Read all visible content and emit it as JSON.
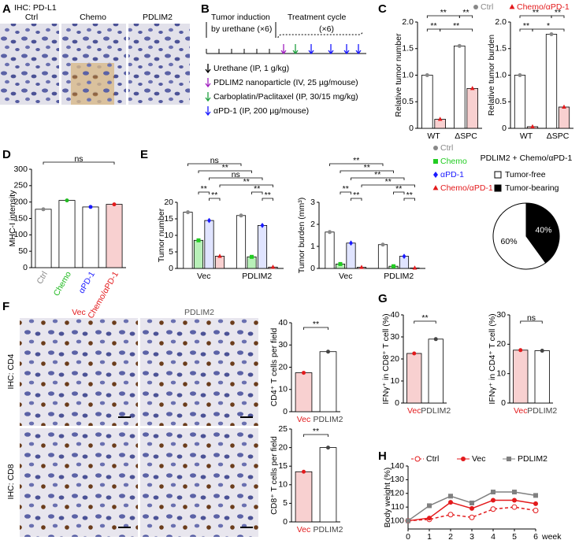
{
  "panel_labels": [
    "A",
    "B",
    "C",
    "D",
    "E",
    "F",
    "G",
    "H"
  ],
  "panel_a": {
    "title": "IHC: PD-L1",
    "images": [
      "Ctrl",
      "Chemo",
      "PDLIM2"
    ]
  },
  "panel_b": {
    "phases": [
      [
        "Tumor induction",
        "by urethane (×6)"
      ],
      [
        "Treatment cycle",
        "(×6)"
      ]
    ],
    "legend": [
      {
        "text": "Urethane (IP, 1 g/kg)",
        "color": "#000000"
      },
      {
        "text": "PDLIM2 nanoparticle (IV, 25 µg/mouse)",
        "color": "#a020c0"
      },
      {
        "text": "Carboplatin/Paclitaxel (IP, 30/15 mg/kg)",
        "color": "#20a040"
      },
      {
        "text": "αPD-1 (IP, 200 µg/mouse)",
        "color": "#1a1aff"
      }
    ]
  },
  "panel_f": {
    "columns": [
      "Vec",
      "PDLIM2"
    ],
    "rows": [
      "IHC: CD4",
      "IHC: CD8"
    ]
  },
  "chart_data": [
    {
      "type": "bar",
      "y_label": "Relative tumor number",
      "categories": [
        "WT",
        "ΔSPC"
      ],
      "series": [
        {
          "name": "Ctrl",
          "color": "#888888",
          "fill": "#ffffff",
          "marker": "circle",
          "values": [
            1.0,
            1.55
          ]
        },
        {
          "name": "Chemo/αPD-1",
          "color": "#e31a1c",
          "fill": "#f8d0d0",
          "marker": "triangle",
          "values": [
            0.17,
            0.75
          ]
        }
      ],
      "ylim": [
        0,
        2
      ],
      "yticks": [
        0,
        0.5,
        {
          "value": 1,
          "label": "1.0"
        },
        1.5,
        {
          "value": 2,
          "label": "2.0"
        }
      ],
      "annotations": [
        "**",
        "**",
        "**",
        "**"
      ]
    },
    {
      "type": "bar",
      "y_label": "Relative tumor burden",
      "categories": [
        "WT",
        "ΔSPC"
      ],
      "series": [
        {
          "color": "#888888",
          "fill": "#ffffff",
          "marker": "circle",
          "values": [
            1.0,
            1.77
          ]
        },
        {
          "color": "#e31a1c",
          "fill": "#f8d0d0",
          "marker": "triangle",
          "values": [
            0.03,
            0.4
          ]
        }
      ],
      "ylim": [
        0,
        2
      ],
      "yticks": [
        0,
        0.5,
        {
          "value": 1,
          "label": "1.0"
        },
        1.5,
        {
          "value": 2,
          "label": "2.0"
        }
      ],
      "annotations": [
        "**",
        "**",
        "**",
        "*"
      ]
    },
    {
      "type": "bar",
      "y_label": "MHC-I intensity",
      "categories": [
        "Ctrl",
        "Chemo",
        "αPD-1",
        "Chemo/αPD-1"
      ],
      "values": [
        178,
        205,
        185,
        193
      ],
      "colors": [
        "#888888",
        "#22bb22",
        "#1a1aff",
        "#e31a1c"
      ],
      "fills": [
        "#ffffff",
        "#ffffff",
        "#ffffff",
        "#f8d0d0"
      ],
      "ylim": [
        0,
        300
      ],
      "yticks": [
        0,
        50,
        100,
        150,
        200,
        250,
        300
      ],
      "annotations": [
        "ns"
      ]
    },
    {
      "type": "bar",
      "y_label": "Tumor number",
      "categories": [
        "Vec",
        "PDLIM2"
      ],
      "series": [
        {
          "color": "#888888",
          "fill": "#ffffff",
          "marker": "circle",
          "values": [
            17,
            16
          ]
        },
        {
          "color": "#22cc22",
          "fill": "#b8f0b8",
          "marker": "square",
          "values": [
            8.5,
            3.5
          ]
        },
        {
          "color": "#1a1aff",
          "fill": "#e0e4ff",
          "marker": "diamond",
          "values": [
            14.5,
            13
          ]
        },
        {
          "color": "#e31a1c",
          "fill": "#f8d0d0",
          "marker": "triangle",
          "values": [
            3.7,
            0.4
          ]
        }
      ],
      "ylim": [
        0,
        20
      ],
      "yticks": [
        0,
        5,
        10,
        15,
        20
      ],
      "annotations": [
        "ns",
        "**",
        "ns",
        "**",
        "**",
        "**",
        "**",
        "**"
      ]
    },
    {
      "type": "bar",
      "y_label": "Tumor burden (mm³)",
      "categories": [
        "Vec",
        "PDLIM2"
      ],
      "series": [
        {
          "name": "Ctrl",
          "color": "#888888",
          "fill": "#ffffff",
          "marker": "circle",
          "values": [
            1.65,
            1.08
          ]
        },
        {
          "name": "Chemo",
          "color": "#22cc22",
          "fill": "#b8f0b8",
          "marker": "square",
          "values": [
            0.2,
            0.1
          ]
        },
        {
          "name": "αPD-1",
          "color": "#1a1aff",
          "fill": "#e0e4ff",
          "marker": "diamond",
          "values": [
            1.15,
            0.55
          ]
        },
        {
          "name": "Chemo/αPD-1",
          "color": "#e31a1c",
          "fill": "#f8d0d0",
          "marker": "triangle",
          "values": [
            0.05,
            0.02
          ]
        }
      ],
      "ylim": [
        0,
        3
      ],
      "yticks": [
        0,
        1,
        2,
        3
      ],
      "annotations": [
        "**",
        "**",
        "**",
        "**",
        "**",
        "**",
        "**",
        "**"
      ]
    },
    {
      "type": "pie",
      "title": "PDLIM2 + Chemo/αPD-1",
      "labels": [
        "Tumor-free",
        "Tumor-bearing"
      ],
      "values": [
        60,
        40
      ],
      "value_labels": [
        "60%",
        "40%"
      ],
      "colors": [
        "#ffffff",
        "#000000"
      ]
    },
    {
      "type": "bar",
      "y_label": "CD4⁺ T cells per field",
      "categories": [
        "Vec",
        "PDLIM2"
      ],
      "values": [
        17.5,
        27
      ],
      "colors": [
        "#e31a1c",
        "#444444"
      ],
      "fills": [
        "#f8d0d0",
        "#ffffff"
      ],
      "ylim": [
        0,
        40
      ],
      "yticks": [
        0,
        10,
        20,
        30,
        40
      ],
      "annotations": [
        "**"
      ]
    },
    {
      "type": "bar",
      "y_label": "CD8⁺ T cells per field",
      "categories": [
        "Vec",
        "PDLIM2"
      ],
      "values": [
        13.5,
        20
      ],
      "colors": [
        "#e31a1c",
        "#444444"
      ],
      "fills": [
        "#f8d0d0",
        "#ffffff"
      ],
      "ylim": [
        0,
        25
      ],
      "yticks": [
        0,
        5,
        10,
        15,
        20,
        25
      ],
      "annotations": [
        "**"
      ]
    },
    {
      "type": "bar",
      "y_label": "IFNγ⁺ in CD8⁺ T cell (%)",
      "categories": [
        "Vec",
        "PDLIM2"
      ],
      "values": [
        22.5,
        29
      ],
      "colors": [
        "#e31a1c",
        "#444444"
      ],
      "fills": [
        "#f8d0d0",
        "#ffffff"
      ],
      "ylim": [
        0,
        40
      ],
      "yticks": [
        0,
        10,
        20,
        30,
        40
      ],
      "annotations": [
        "**"
      ]
    },
    {
      "type": "bar",
      "y_label": "IFNγ⁺ in CD4⁺ T cell (%)",
      "categories": [
        "Vec",
        "PDLIM2"
      ],
      "values": [
        18,
        17.8
      ],
      "colors": [
        "#e31a1c",
        "#444444"
      ],
      "fills": [
        "#f8d0d0",
        "#ffffff"
      ],
      "ylim": [
        0,
        30
      ],
      "yticks": [
        0,
        10,
        20,
        30
      ],
      "annotations": [
        "ns"
      ]
    },
    {
      "type": "line",
      "y_label": "Body weight (%)",
      "x_label": "week",
      "x": [
        0,
        1,
        2,
        3,
        4,
        5,
        6
      ],
      "xlim": [
        0,
        6
      ],
      "xticks": [
        0,
        1,
        2,
        3,
        4,
        5,
        6
      ],
      "ylim": [
        94,
        140
      ],
      "yticks": [
        100,
        110,
        120,
        130,
        140
      ],
      "series": [
        {
          "name": "Ctrl",
          "color": "#e31a1c",
          "marker": "circle",
          "dashed": true,
          "open": true,
          "values": [
            100,
            101,
            104.5,
            102.5,
            108.5,
            110,
            107.5
          ]
        },
        {
          "name": "Vec",
          "color": "#e31a1c",
          "marker": "circle",
          "values": [
            100,
            102,
            113.5,
            109,
            115,
            115,
            112.5
          ]
        },
        {
          "name": "PDLIM2",
          "color": "#808080",
          "marker": "square",
          "values": [
            100,
            111,
            118,
            113,
            121,
            121,
            118.5
          ]
        }
      ]
    }
  ]
}
